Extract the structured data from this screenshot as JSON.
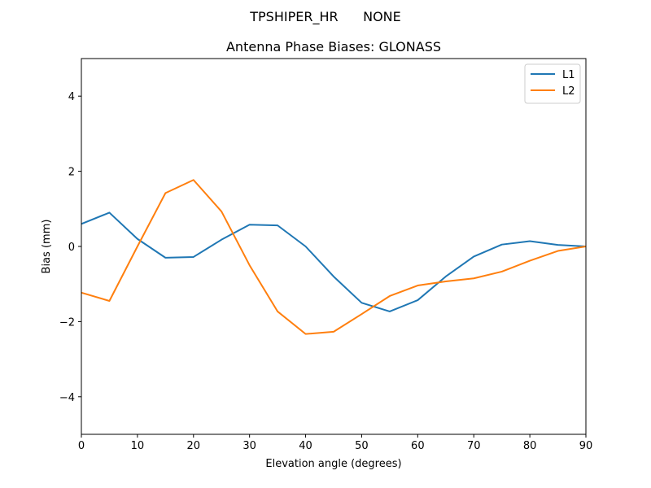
{
  "header": {
    "suptitle": "TPSHIPER_HR      NONE"
  },
  "colors": {
    "L1": "#1f77b4",
    "L2": "#ff7f0e",
    "axes": "#000000",
    "background": "#ffffff"
  },
  "chart_data": {
    "type": "line",
    "title": "Antenna Phase Biases: GLONASS",
    "xlabel": "Elevation angle (degrees)",
    "ylabel": "Bias (mm)",
    "xlim": [
      0,
      90
    ],
    "ylim": [
      -5,
      5
    ],
    "xticks": [
      0,
      10,
      20,
      30,
      40,
      50,
      60,
      70,
      80,
      90
    ],
    "yticks": [
      -4,
      -2,
      0,
      2,
      4
    ],
    "ytick_labels": [
      "−4",
      "−2",
      "0",
      "2",
      "4"
    ],
    "grid": false,
    "legend_position": "top-right",
    "x": [
      0,
      5,
      10,
      15,
      20,
      25,
      30,
      35,
      40,
      45,
      50,
      55,
      60,
      65,
      70,
      75,
      80,
      85,
      90
    ],
    "series": [
      {
        "name": "L1",
        "color": "#1f77b4",
        "values": [
          0.6,
          0.9,
          0.2,
          -0.3,
          -0.28,
          0.18,
          0.58,
          0.56,
          0.0,
          -0.8,
          -1.5,
          -1.73,
          -1.43,
          -0.8,
          -0.27,
          0.05,
          0.14,
          0.04,
          0.0
        ]
      },
      {
        "name": "L2",
        "color": "#ff7f0e",
        "values": [
          -1.23,
          -1.45,
          0.0,
          1.42,
          1.77,
          0.93,
          -0.5,
          -1.73,
          -2.33,
          -2.27,
          -1.8,
          -1.32,
          -1.04,
          -0.93,
          -0.85,
          -0.67,
          -0.38,
          -0.12,
          0.0
        ]
      }
    ]
  }
}
